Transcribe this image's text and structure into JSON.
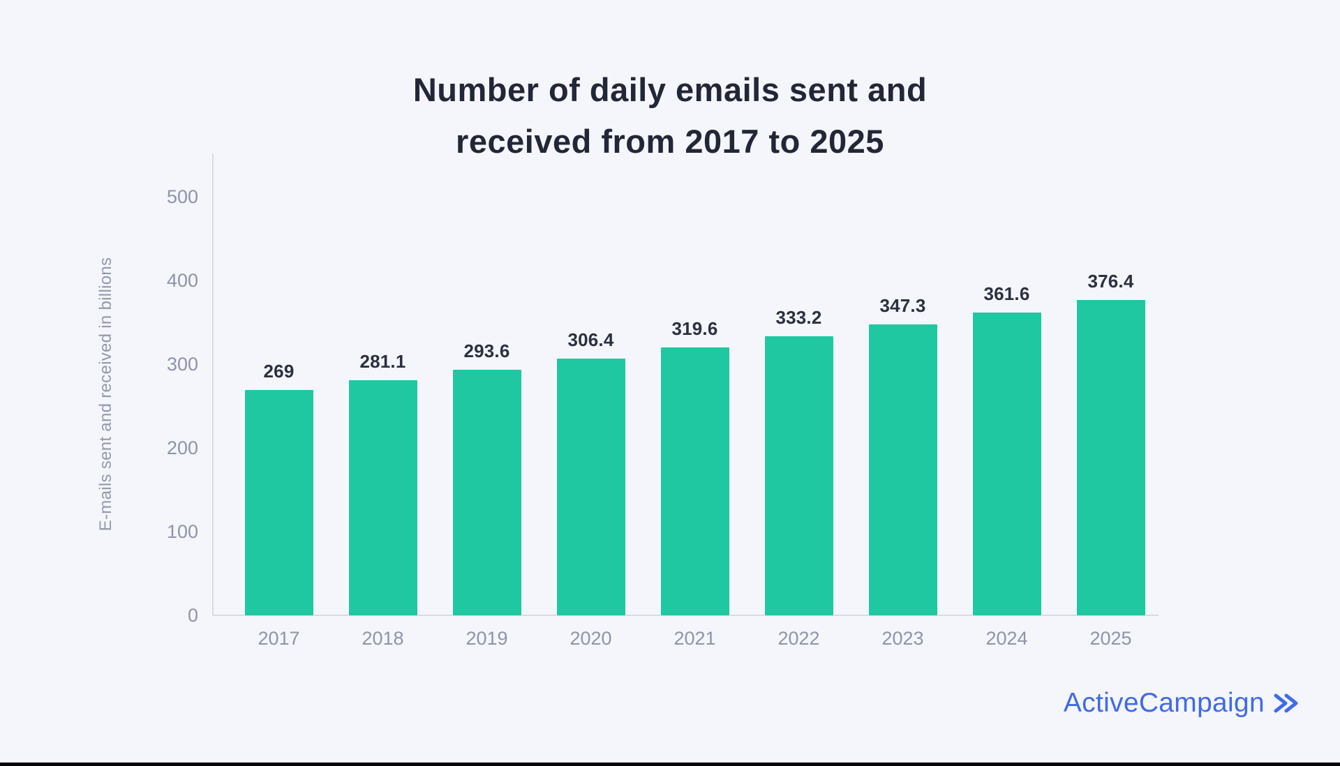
{
  "page": {
    "background": "#f5f6fb",
    "bottom_strip_color": "#050505"
  },
  "chart_data": {
    "type": "bar",
    "title_lines": [
      "Number of daily emails sent and",
      "received from 2017 to 2025"
    ],
    "categories": [
      "2017",
      "2018",
      "2019",
      "2020",
      "2021",
      "2022",
      "2023",
      "2024",
      "2025"
    ],
    "values": [
      269,
      281.1,
      293.6,
      306.4,
      319.6,
      333.2,
      347.3,
      361.6,
      376.4
    ],
    "value_labels": [
      "269",
      "281.1",
      "293.6",
      "306.4",
      "319.6",
      "333.2",
      "347.3",
      "361.6",
      "376.4"
    ],
    "xlabel": "",
    "ylabel": "E-mails sent and received in billions",
    "ylim": [
      0,
      500
    ],
    "yticks": [
      0,
      100,
      200,
      300,
      400,
      500
    ],
    "grid": false,
    "legend": false,
    "bar_color": "#1fc8a0",
    "title_color": "#222738",
    "axis_text_color": "#8d94a9"
  },
  "branding": {
    "logo_text": "ActiveCampaign",
    "logo_color": "#3f6ae8",
    "chevron_icon": "double-chevron-right"
  }
}
